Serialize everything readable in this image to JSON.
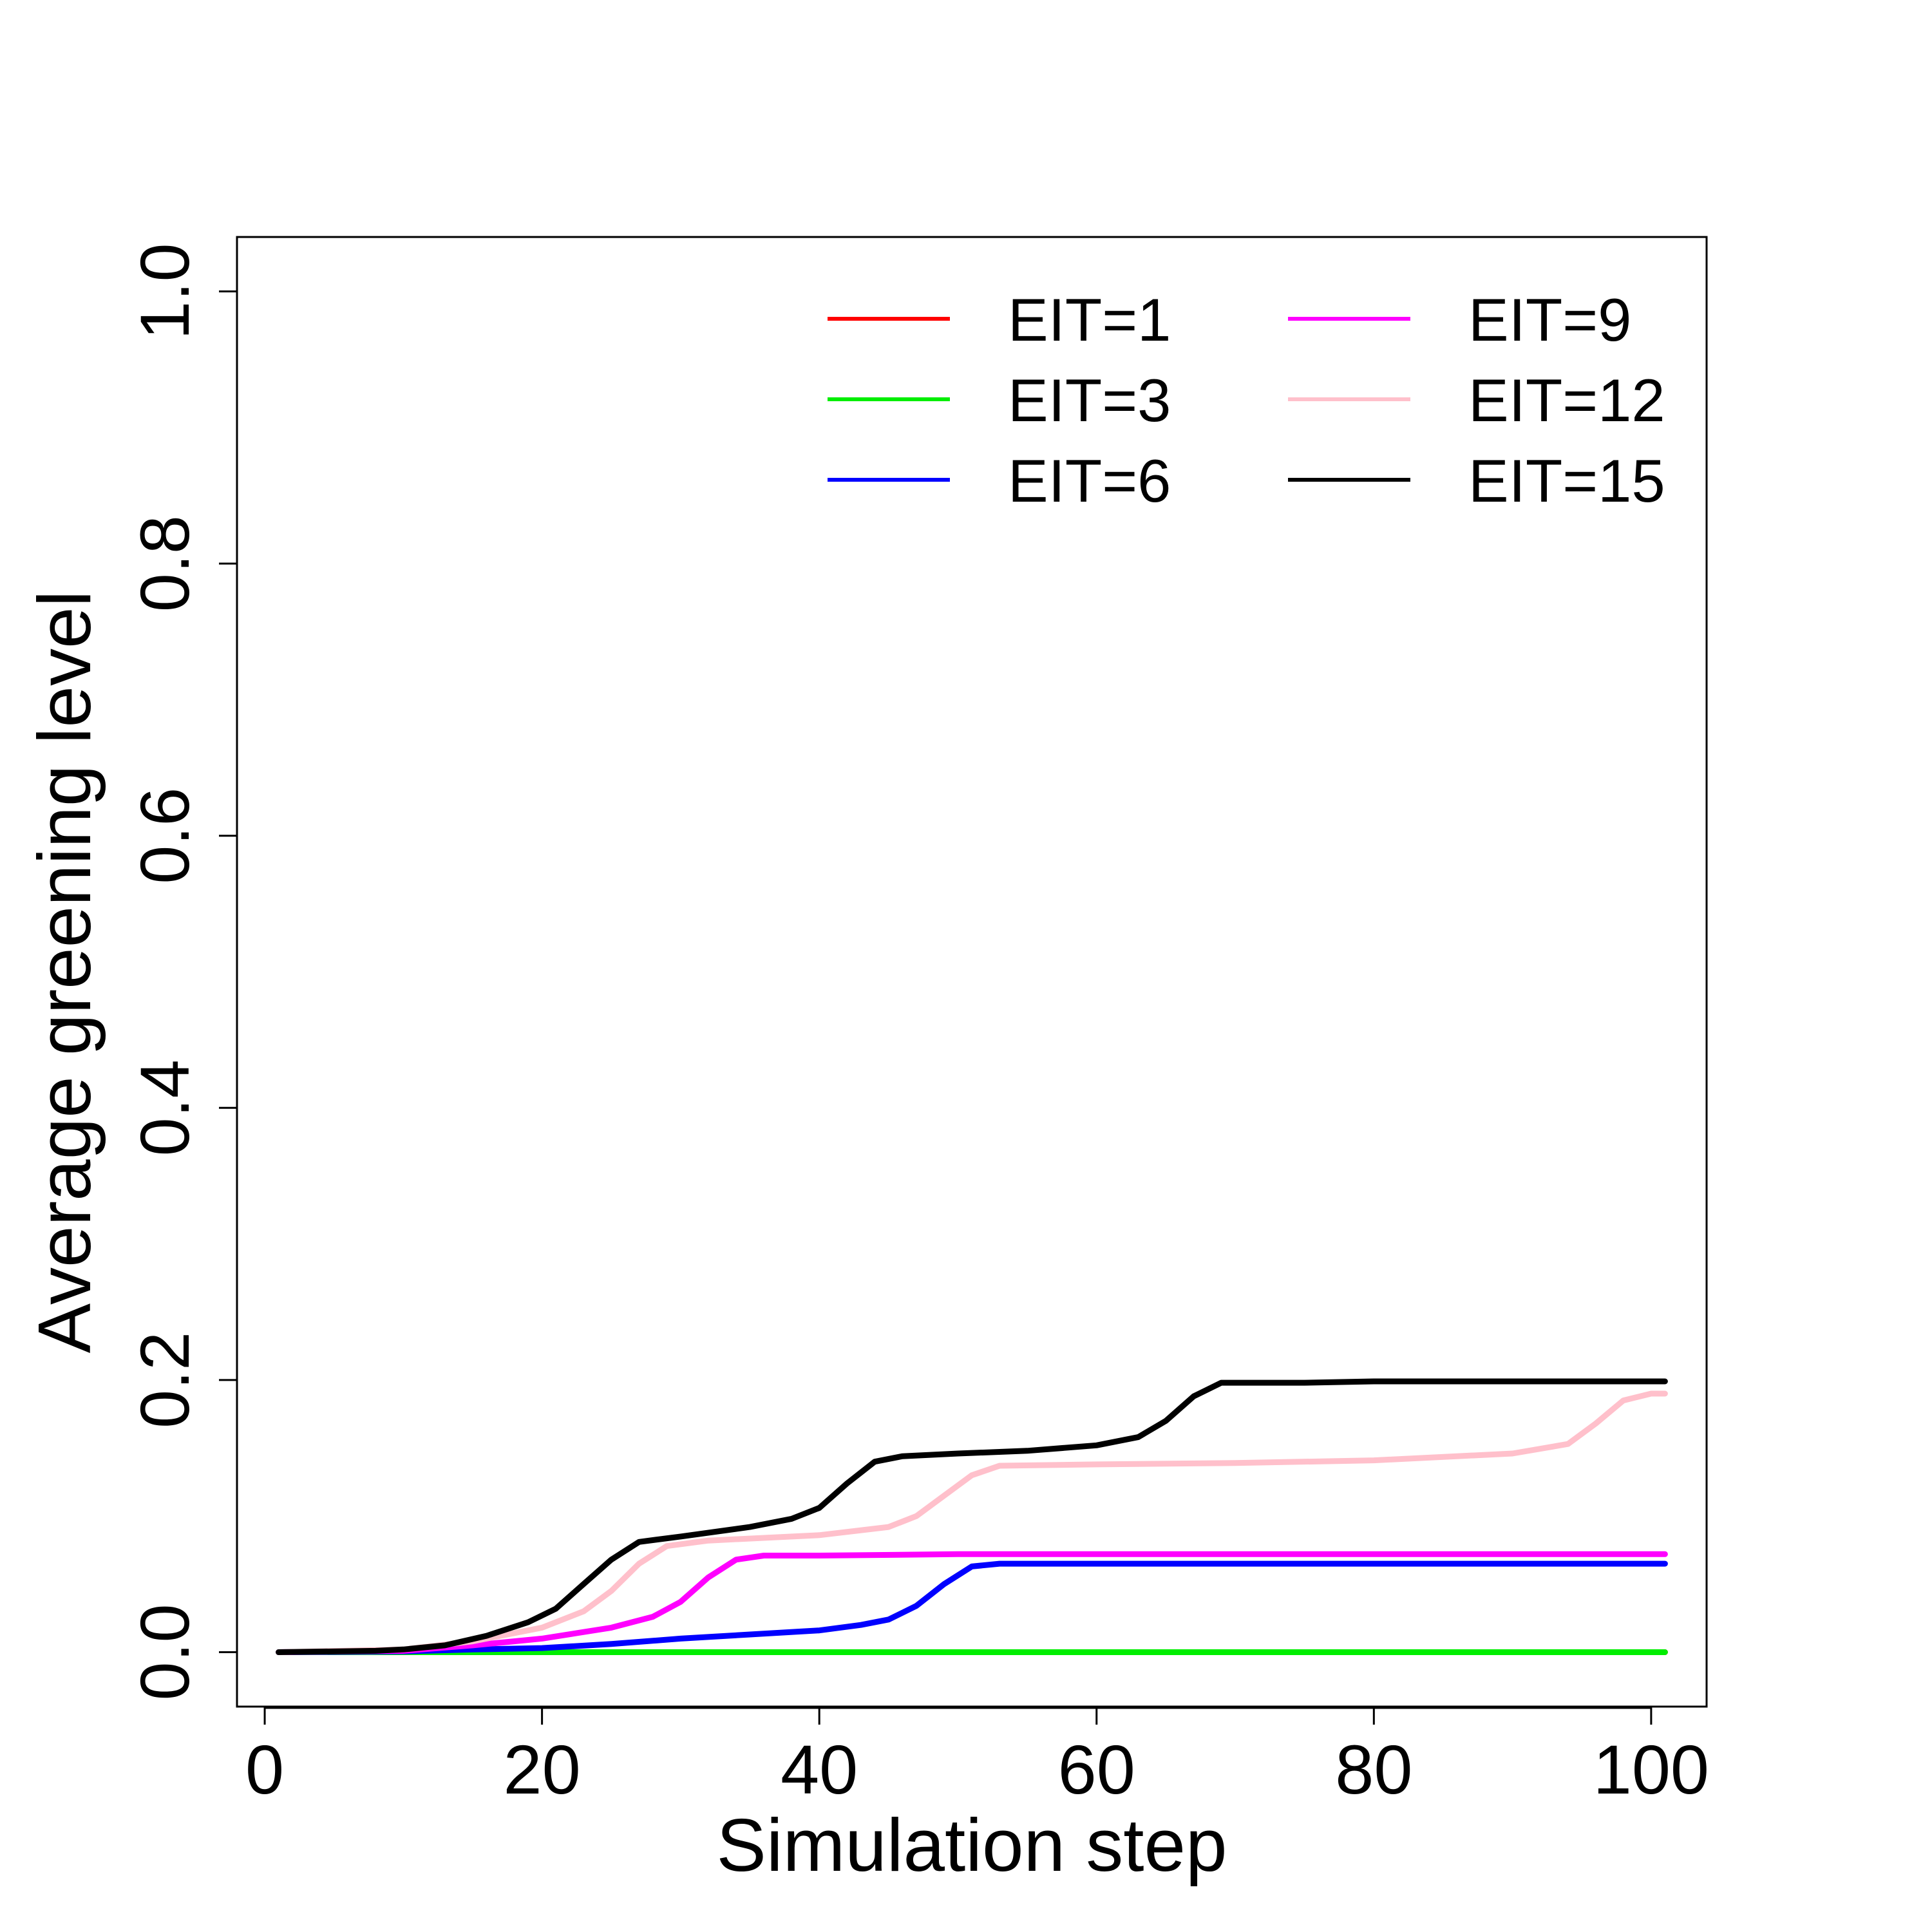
{
  "chart_data": {
    "type": "line",
    "title": "",
    "xlabel": "Simulation step",
    "ylabel": "Average greening level",
    "xlim": [
      -2,
      104
    ],
    "ylim": [
      -0.04,
      1.04
    ],
    "xticks": [
      0,
      20,
      40,
      60,
      80,
      100
    ],
    "xtick_labels": [
      "0",
      "20",
      "40",
      "60",
      "80",
      "100"
    ],
    "yticks": [
      0.0,
      0.2,
      0.4,
      0.6,
      0.8,
      1.0
    ],
    "ytick_labels": [
      "0.0",
      "0.2",
      "0.4",
      "0.6",
      "0.8",
      "1.0"
    ],
    "grid": false,
    "legend_position": "top-right",
    "series": [
      {
        "name": "EIT=1",
        "color": "#ff0000",
        "points": [
          [
            1,
            0
          ],
          [
            101,
            0
          ]
        ]
      },
      {
        "name": "EIT=3",
        "color": "#00ee00",
        "points": [
          [
            1,
            0
          ],
          [
            101,
            0
          ]
        ]
      },
      {
        "name": "EIT=6",
        "color": "#0000ff",
        "points": [
          [
            1,
            0
          ],
          [
            10,
            0.0005
          ],
          [
            15,
            0.002
          ],
          [
            20,
            0.003
          ],
          [
            25,
            0.006
          ],
          [
            30,
            0.01
          ],
          [
            35,
            0.013
          ],
          [
            40,
            0.016
          ],
          [
            43,
            0.02
          ],
          [
            45,
            0.024
          ],
          [
            47,
            0.034
          ],
          [
            49,
            0.05
          ],
          [
            51,
            0.063
          ],
          [
            53,
            0.065
          ],
          [
            60,
            0.065
          ],
          [
            80,
            0.065
          ],
          [
            101,
            0.065
          ]
        ]
      },
      {
        "name": "EIT=9",
        "color": "#ff00ff",
        "points": [
          [
            1,
            0
          ],
          [
            10,
            0.001
          ],
          [
            15,
            0.005
          ],
          [
            20,
            0.01
          ],
          [
            25,
            0.018
          ],
          [
            28,
            0.026
          ],
          [
            30,
            0.037
          ],
          [
            32,
            0.055
          ],
          [
            34,
            0.068
          ],
          [
            36,
            0.071
          ],
          [
            40,
            0.071
          ],
          [
            50,
            0.072
          ],
          [
            60,
            0.072
          ],
          [
            80,
            0.072
          ],
          [
            101,
            0.072
          ]
        ]
      },
      {
        "name": "EIT=12",
        "color": "#ffc0cb",
        "points": [
          [
            1,
            0
          ],
          [
            10,
            0.002
          ],
          [
            15,
            0.008
          ],
          [
            20,
            0.018
          ],
          [
            23,
            0.03
          ],
          [
            25,
            0.045
          ],
          [
            27,
            0.065
          ],
          [
            29,
            0.078
          ],
          [
            32,
            0.082
          ],
          [
            40,
            0.086
          ],
          [
            45,
            0.092
          ],
          [
            47,
            0.1
          ],
          [
            49,
            0.115
          ],
          [
            51,
            0.13
          ],
          [
            53,
            0.137
          ],
          [
            60,
            0.138
          ],
          [
            70,
            0.139
          ],
          [
            80,
            0.141
          ],
          [
            90,
            0.146
          ],
          [
            94,
            0.153
          ],
          [
            96,
            0.168
          ],
          [
            98,
            0.185
          ],
          [
            100,
            0.19
          ],
          [
            101,
            0.19
          ]
        ]
      },
      {
        "name": "EIT=15",
        "color": "#000000",
        "points": [
          [
            1,
            0
          ],
          [
            8,
            0.001
          ],
          [
            10,
            0.002
          ],
          [
            13,
            0.005
          ],
          [
            16,
            0.012
          ],
          [
            19,
            0.022
          ],
          [
            21,
            0.032
          ],
          [
            23,
            0.05
          ],
          [
            25,
            0.068
          ],
          [
            27,
            0.081
          ],
          [
            30,
            0.085
          ],
          [
            35,
            0.092
          ],
          [
            38,
            0.098
          ],
          [
            40,
            0.106
          ],
          [
            42,
            0.124
          ],
          [
            44,
            0.14
          ],
          [
            46,
            0.144
          ],
          [
            50,
            0.146
          ],
          [
            55,
            0.148
          ],
          [
            60,
            0.152
          ],
          [
            63,
            0.158
          ],
          [
            65,
            0.17
          ],
          [
            67,
            0.188
          ],
          [
            69,
            0.198
          ],
          [
            75,
            0.198
          ],
          [
            80,
            0.199
          ],
          [
            90,
            0.199
          ],
          [
            101,
            0.199
          ]
        ]
      }
    ]
  }
}
